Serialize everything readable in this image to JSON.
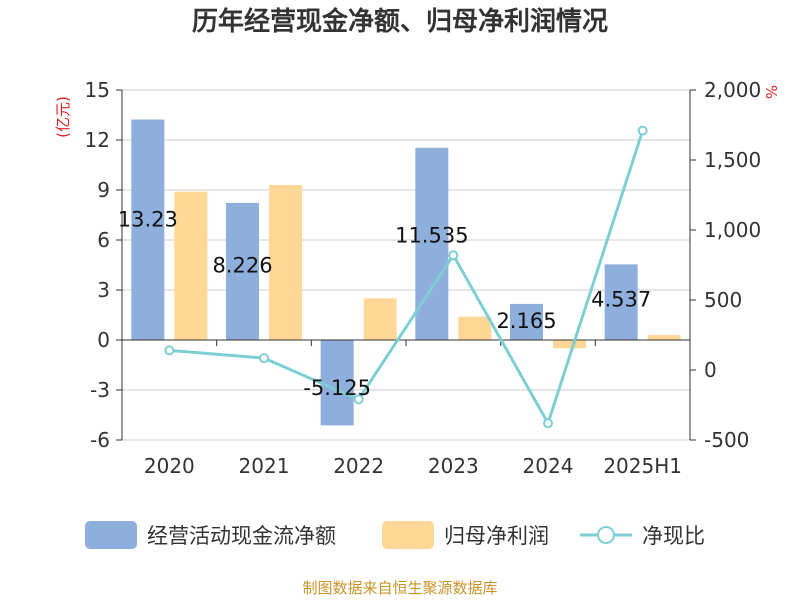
{
  "chart_data": {
    "type": "bar",
    "title": "历年经营现金净额、归母净利润情况",
    "categories": [
      "2020",
      "2021",
      "2022",
      "2023",
      "2024",
      "2025H1"
    ],
    "y_left": {
      "unit_label": "(亿元)",
      "ylim": [
        -6,
        15
      ],
      "ticks": [
        "15",
        "12",
        "9",
        "6",
        "3",
        "0",
        "-3",
        "-6"
      ]
    },
    "y_right": {
      "unit_label": "%",
      "ylim": [
        -500,
        2000
      ],
      "ticks": [
        "2,000",
        "1,500",
        "1,000",
        "500",
        "0",
        "-500"
      ]
    },
    "series": [
      {
        "name": "经营活动现金流净额",
        "type": "bar",
        "axis": "left",
        "color": "#8eaedb",
        "values": [
          13.23,
          8.226,
          -5.125,
          11.535,
          2.165,
          4.537
        ],
        "labels": [
          "13.23",
          "8.226",
          "-5.125",
          "11.535",
          "2.165",
          "4.537"
        ]
      },
      {
        "name": "归母净利润",
        "type": "bar",
        "axis": "left",
        "color": "#ffd797",
        "values": [
          8.9,
          9.3,
          2.5,
          1.4,
          -0.5,
          0.3
        ]
      },
      {
        "name": "净现比",
        "type": "line",
        "axis": "right",
        "color": "#7ecfd4",
        "values": [
          140,
          85,
          -210,
          820,
          -380,
          1710
        ]
      }
    ],
    "legend_position": "bottom",
    "grid": true
  },
  "source": "制图数据来自恒生聚源数据库"
}
